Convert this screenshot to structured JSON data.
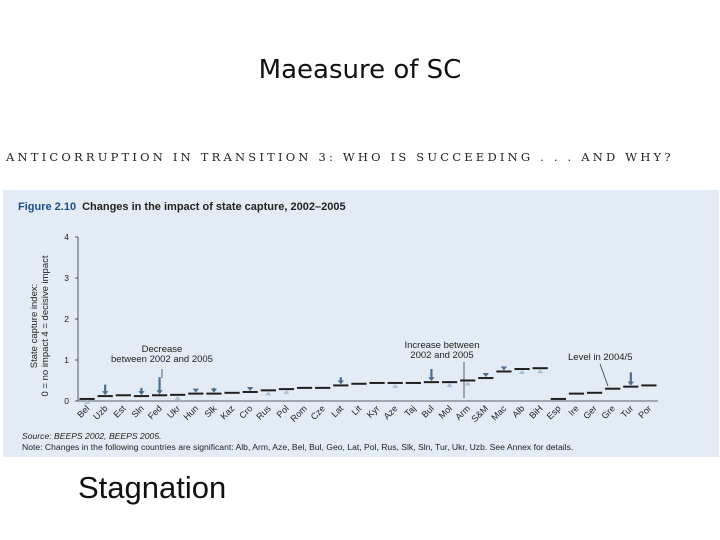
{
  "slide": {
    "title": "Maeasure of SC",
    "header": "ANTICORRUPTION IN TRANSITION 3: WHO IS SUCCEEDING . . . AND WHY?",
    "bottom_text": "Stagnation"
  },
  "figure": {
    "number": "Figure 2.10",
    "title": "Changes in the impact of state capture, 2002–2005",
    "source": "Source: BEEPS 2002, BEEPS 2005.",
    "note": "Note: Changes in the following countries are significant: Alb, Arm, Aze, Bel, Bul, Geo, Lat, Pol, Rus, Slk, Sln, Tur, Ukr, Uzb. See Annex for details."
  },
  "chart_data": {
    "type": "bar",
    "ylabel_line1": "State capture index:",
    "ylabel_line2": "0 = no impact 4 = decisive impact",
    "ylim": [
      0,
      4
    ],
    "yticks": [
      "0",
      "1",
      "2",
      "3",
      "4"
    ],
    "categories": [
      "Bel",
      "Uzb",
      "Est",
      "Sln",
      "Fed",
      "Ukr",
      "Hun",
      "Slk",
      "Kaz",
      "Cro",
      "Rus",
      "Pol",
      "Rom",
      "Cze",
      "Lat",
      "Lit",
      "Kyr",
      "Aze",
      "Taj",
      "Bul",
      "Mol",
      "Arm",
      "S&M",
      "Mac",
      "Alb",
      "BiH",
      "Esp",
      "Ire",
      "Ger",
      "Gre",
      "Tur",
      "Por"
    ],
    "series": [
      {
        "values": [
          0.05,
          0.12,
          0.14,
          0.12,
          0.14,
          0.15,
          0.18,
          0.18,
          0.2,
          0.22,
          0.26,
          0.29,
          0.32,
          0.32,
          0.38,
          0.42,
          0.44,
          0.44,
          0.44,
          0.46,
          0.46,
          0.5,
          0.56,
          0.72,
          0.78,
          0.8,
          0.05,
          0.18,
          0.2,
          0.3,
          0.35,
          0.38
        ]
      },
      {
        "values": [
          0.0,
          0.4,
          0.18,
          0.32,
          0.58,
          0.05,
          0.26,
          0.32,
          0.2,
          0.3,
          0.18,
          0.22,
          0.3,
          0.32,
          0.58,
          0.38,
          0.44,
          0.34,
          0.42,
          0.78,
          0.42,
          0.42,
          0.62,
          0.78,
          0.68,
          0.68,
          null,
          null,
          null,
          null,
          0.7,
          null
        ]
      }
    ],
    "legend": null,
    "annotations": [
      {
        "text": "Decrease between 2002 and 2005"
      },
      {
        "text": "Increase between 2002 and 2005"
      },
      {
        "text": "Level in 2004/5"
      }
    ],
    "colors": {
      "bar": "#1f1f1f",
      "decrease_arrow": "#4b6e8f",
      "increase_arrow": "#a9c1d8",
      "panel": "#e3ecf4"
    },
    "grid": false
  }
}
